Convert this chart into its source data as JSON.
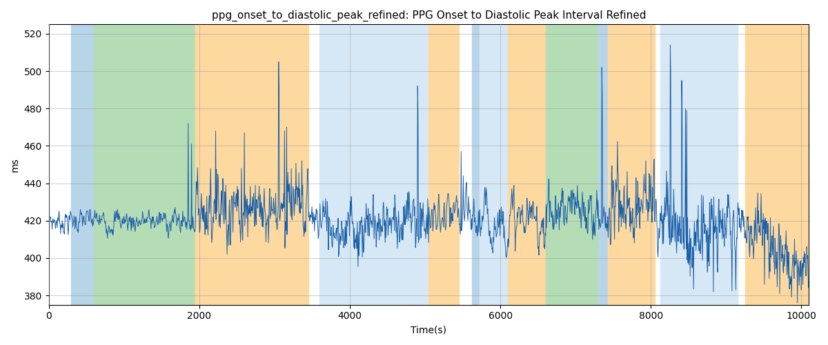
{
  "title": "ppg_onset_to_diastolic_peak_refined: PPG Onset to Diastolic Peak Interval Refined",
  "xlabel": "Time(s)",
  "ylabel": "ms",
  "ylim": [
    375,
    525
  ],
  "xlim": [
    0,
    10100
  ],
  "yticks": [
    380,
    400,
    420,
    440,
    460,
    480,
    500,
    520
  ],
  "xticks": [
    0,
    2000,
    4000,
    6000,
    8000,
    10000
  ],
  "bg_bands": [
    {
      "xmin": 300,
      "xmax": 600,
      "color": "#b8d4e8"
    },
    {
      "xmin": 600,
      "xmax": 1950,
      "color": "#b5ddb5"
    },
    {
      "xmin": 1950,
      "xmax": 3450,
      "color": "#fdd9a0"
    },
    {
      "xmin": 3450,
      "xmax": 3600,
      "color": "#ffffff"
    },
    {
      "xmin": 3600,
      "xmax": 5050,
      "color": "#d6e8f5"
    },
    {
      "xmin": 5050,
      "xmax": 5450,
      "color": "#fdd9a0"
    },
    {
      "xmin": 5450,
      "xmax": 5620,
      "color": "#ffffff"
    },
    {
      "xmin": 5620,
      "xmax": 5720,
      "color": "#b8d4e8"
    },
    {
      "xmin": 5720,
      "xmax": 6100,
      "color": "#d6e8f5"
    },
    {
      "xmin": 6100,
      "xmax": 6600,
      "color": "#fdd9a0"
    },
    {
      "xmin": 6600,
      "xmax": 7300,
      "color": "#b5ddb5"
    },
    {
      "xmin": 7300,
      "xmax": 7430,
      "color": "#b8d4e8"
    },
    {
      "xmin": 7430,
      "xmax": 8050,
      "color": "#fdd9a0"
    },
    {
      "xmin": 8050,
      "xmax": 8130,
      "color": "#ffffff"
    },
    {
      "xmin": 8130,
      "xmax": 9150,
      "color": "#d6e8f5"
    },
    {
      "xmin": 9150,
      "xmax": 9250,
      "color": "#ffffff"
    },
    {
      "xmin": 9250,
      "xmax": 10100,
      "color": "#fdd9a0"
    }
  ],
  "line_color": "#1a5fa8",
  "line_width": 0.7,
  "base_mean": 420,
  "figsize": [
    12,
    5
  ],
  "dpi": 100,
  "title_fontsize": 11,
  "label_fontsize": 10
}
